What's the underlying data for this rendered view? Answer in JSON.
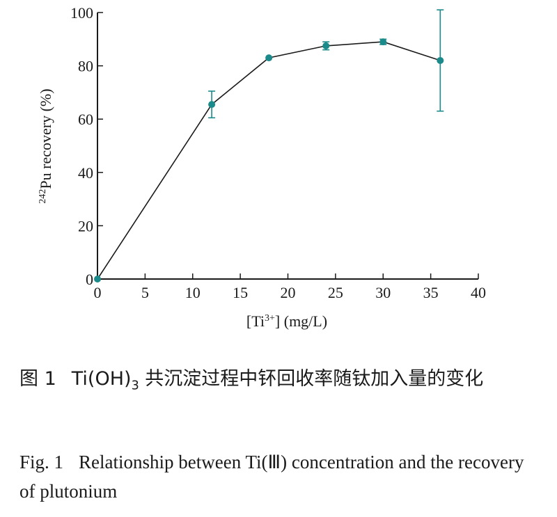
{
  "chart_data": {
    "type": "line",
    "xlabel_parts": {
      "pre": "[Ti",
      "sup": "3+",
      "post": "] (mg/L)"
    },
    "ylabel_parts": {
      "sup": "242",
      "main": "Pu  recovery (%)"
    },
    "xlim": [
      0,
      40
    ],
    "ylim": [
      0,
      100
    ],
    "x_ticks": [
      0,
      5,
      10,
      15,
      20,
      25,
      30,
      35,
      40
    ],
    "y_ticks": [
      0,
      20,
      40,
      60,
      80,
      100
    ],
    "series": [
      {
        "x": [
          0,
          12,
          18,
          24,
          30,
          36
        ],
        "y": [
          0,
          65.5,
          83,
          87.5,
          89,
          82
        ],
        "error": [
          0,
          5,
          0,
          1.5,
          1,
          19
        ]
      }
    ],
    "colors": {
      "line": "#1a1a1a",
      "marker": "#1a8a8a"
    }
  },
  "caption": {
    "cn_head": "图 1",
    "cn_text_a": "Ti(OH)",
    "cn_sub": "3",
    "cn_text_b": " 共沉淀过程中钚回收率随钛加入量的变化",
    "en_head": "Fig. 1",
    "en_text": "Relationship between Ti(Ⅲ) concentration and the recovery of plutonium"
  }
}
